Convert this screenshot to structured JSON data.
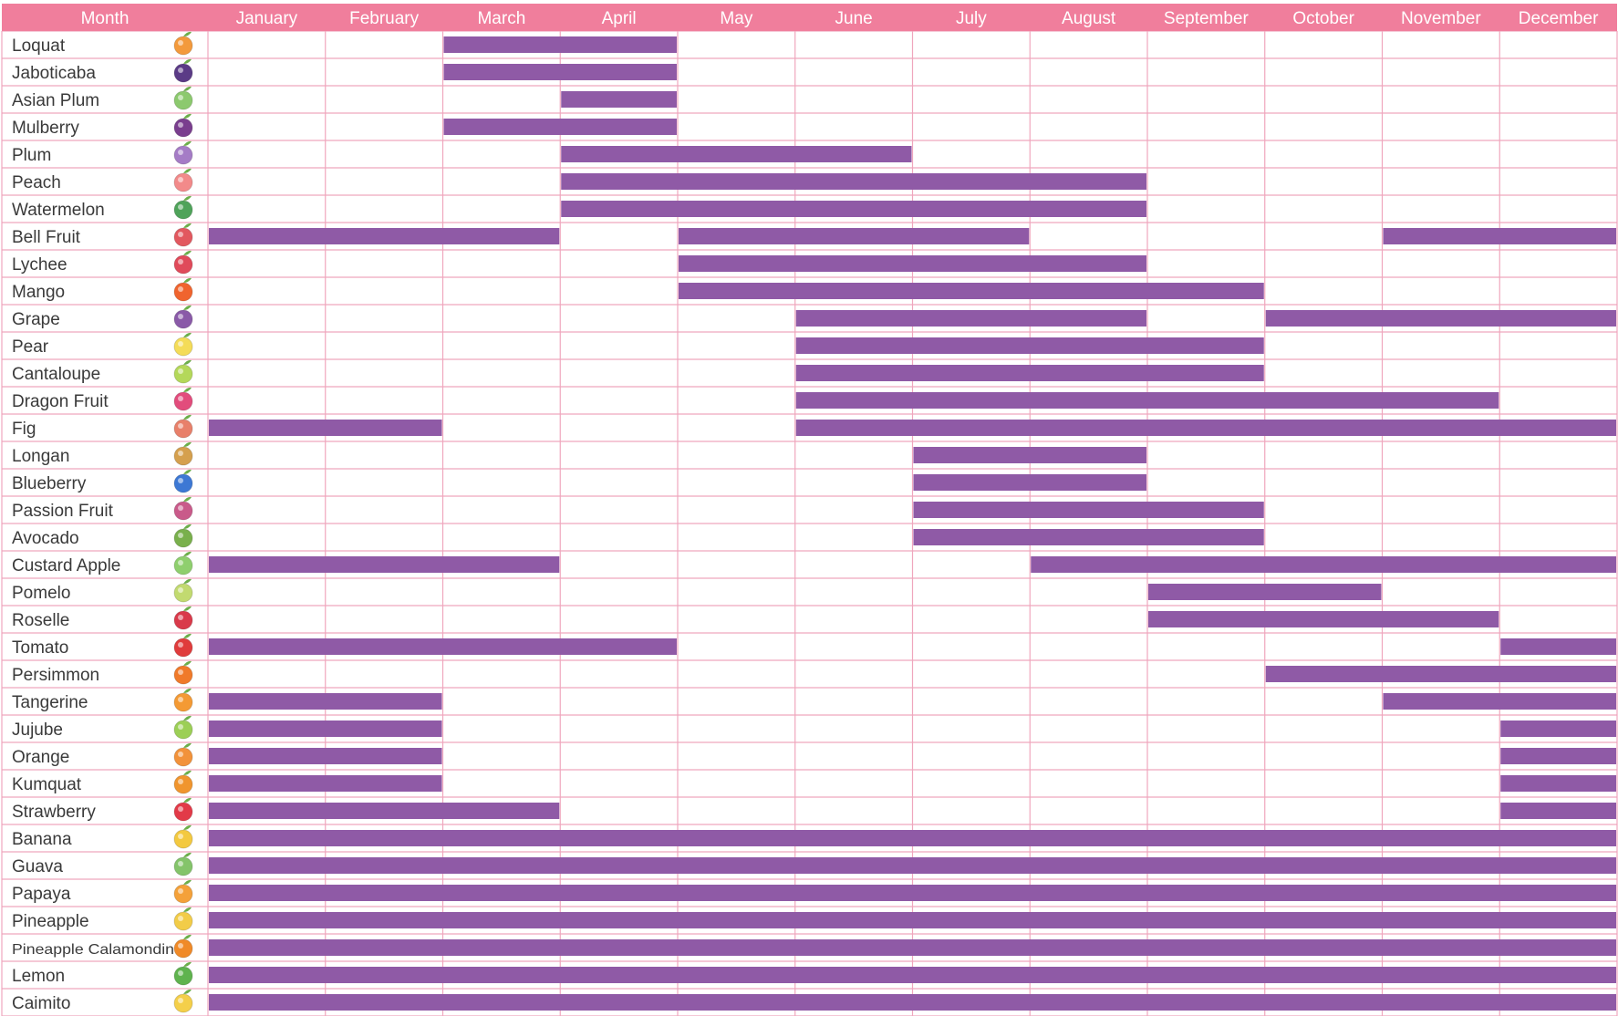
{
  "chart_data": {
    "type": "table",
    "header_label": "Month",
    "months": [
      "January",
      "February",
      "March",
      "April",
      "May",
      "June",
      "July",
      "August",
      "September",
      "October",
      "November",
      "December"
    ],
    "colors": {
      "header": "#f07e9c",
      "grid": "#efa6bd",
      "bar": "#8f5aa6",
      "label": "#3a3a3a"
    },
    "fruits": [
      {
        "name": "Loquat",
        "icon": "loquat-icon",
        "icon_color": "#f39a3c",
        "seasons": [
          [
            3,
            4
          ]
        ]
      },
      {
        "name": "Jaboticaba",
        "icon": "jaboticaba-icon",
        "icon_color": "#5b3b86",
        "seasons": [
          [
            3,
            4
          ]
        ]
      },
      {
        "name": "Asian Plum",
        "icon": "asian-plum-icon",
        "icon_color": "#8cc96e",
        "seasons": [
          [
            4,
            4
          ]
        ]
      },
      {
        "name": "Mulberry",
        "icon": "mulberry-icon",
        "icon_color": "#7a3e8e",
        "seasons": [
          [
            3,
            4
          ]
        ]
      },
      {
        "name": "Plum",
        "icon": "plum-icon",
        "icon_color": "#a57cc6",
        "seasons": [
          [
            4,
            6
          ]
        ]
      },
      {
        "name": "Peach",
        "icon": "peach-icon",
        "icon_color": "#f28a8a",
        "seasons": [
          [
            4,
            8
          ]
        ]
      },
      {
        "name": "Watermelon",
        "icon": "watermelon-icon",
        "icon_color": "#4fa35a",
        "seasons": [
          [
            4,
            8
          ]
        ]
      },
      {
        "name": "Bell Fruit",
        "icon": "bell-fruit-icon",
        "icon_color": "#e2585f",
        "seasons": [
          [
            1,
            3
          ],
          [
            5,
            7
          ],
          [
            11,
            12
          ]
        ]
      },
      {
        "name": "Lychee",
        "icon": "lychee-icon",
        "icon_color": "#e04a5a",
        "seasons": [
          [
            5,
            8
          ]
        ]
      },
      {
        "name": "Mango",
        "icon": "mango-icon",
        "icon_color": "#f0642e",
        "seasons": [
          [
            5,
            9
          ]
        ]
      },
      {
        "name": "Grape",
        "icon": "grape-icon",
        "icon_color": "#8a5aa8",
        "seasons": [
          [
            6,
            8
          ],
          [
            10,
            12
          ]
        ]
      },
      {
        "name": "Pear",
        "icon": "pear-icon",
        "icon_color": "#f4dc58",
        "seasons": [
          [
            6,
            9
          ]
        ]
      },
      {
        "name": "Cantaloupe",
        "icon": "cantaloupe-icon",
        "icon_color": "#b4d85a",
        "seasons": [
          [
            6,
            9
          ]
        ]
      },
      {
        "name": "Dragon Fruit",
        "icon": "dragon-fruit-icon",
        "icon_color": "#e24c7c",
        "seasons": [
          [
            6,
            11
          ]
        ]
      },
      {
        "name": "Fig",
        "icon": "fig-icon",
        "icon_color": "#e8806a",
        "seasons": [
          [
            1,
            2
          ],
          [
            6,
            12
          ]
        ]
      },
      {
        "name": "Longan",
        "icon": "longan-icon",
        "icon_color": "#d5a04e",
        "seasons": [
          [
            7,
            8
          ]
        ]
      },
      {
        "name": "Blueberry",
        "icon": "blueberry-icon",
        "icon_color": "#3d78d4",
        "seasons": [
          [
            7,
            8
          ]
        ]
      },
      {
        "name": "Passion Fruit",
        "icon": "passion-fruit-icon",
        "icon_color": "#c95a8a",
        "seasons": [
          [
            7,
            9
          ]
        ]
      },
      {
        "name": "Avocado",
        "icon": "avocado-icon",
        "icon_color": "#79b04c",
        "seasons": [
          [
            7,
            9
          ]
        ]
      },
      {
        "name": "Custard Apple",
        "icon": "custard-apple-icon",
        "icon_color": "#8fcf6e",
        "seasons": [
          [
            1,
            3
          ],
          [
            8,
            12
          ]
        ]
      },
      {
        "name": "Pomelo",
        "icon": "pomelo-icon",
        "icon_color": "#c2da70",
        "seasons": [
          [
            9,
            10
          ]
        ]
      },
      {
        "name": "Roselle",
        "icon": "roselle-icon",
        "icon_color": "#d93a4a",
        "seasons": [
          [
            9,
            11
          ]
        ]
      },
      {
        "name": "Tomato",
        "icon": "tomato-icon",
        "icon_color": "#e03c3c",
        "seasons": [
          [
            1,
            4
          ],
          [
            12,
            12
          ]
        ]
      },
      {
        "name": "Persimmon",
        "icon": "persimmon-icon",
        "icon_color": "#f07a2a",
        "seasons": [
          [
            10,
            12
          ]
        ]
      },
      {
        "name": "Tangerine",
        "icon": "tangerine-icon",
        "icon_color": "#f49a34",
        "seasons": [
          [
            1,
            2
          ],
          [
            11,
            12
          ]
        ]
      },
      {
        "name": "Jujube",
        "icon": "jujube-icon",
        "icon_color": "#9ccf56",
        "seasons": [
          [
            1,
            2
          ],
          [
            12,
            12
          ]
        ]
      },
      {
        "name": "Orange",
        "icon": "orange-icon",
        "icon_color": "#f2923a",
        "seasons": [
          [
            1,
            2
          ],
          [
            12,
            12
          ]
        ]
      },
      {
        "name": "Kumquat",
        "icon": "kumquat-icon",
        "icon_color": "#f0952e",
        "seasons": [
          [
            1,
            2
          ],
          [
            12,
            12
          ]
        ]
      },
      {
        "name": "Strawberry",
        "icon": "strawberry-icon",
        "icon_color": "#e23a48",
        "seasons": [
          [
            1,
            3
          ],
          [
            12,
            12
          ]
        ]
      },
      {
        "name": "Banana",
        "icon": "banana-icon",
        "icon_color": "#f3c940",
        "seasons": [
          [
            1,
            12
          ]
        ]
      },
      {
        "name": "Guava",
        "icon": "guava-icon",
        "icon_color": "#84c46a",
        "seasons": [
          [
            1,
            12
          ]
        ]
      },
      {
        "name": "Papaya",
        "icon": "papaya-icon",
        "icon_color": "#f4a13a",
        "seasons": [
          [
            1,
            12
          ]
        ]
      },
      {
        "name": "Pineapple",
        "icon": "pineapple-icon",
        "icon_color": "#f2cc48",
        "seasons": [
          [
            1,
            12
          ]
        ]
      },
      {
        "name": "Pineapple Calamondin",
        "icon": "calamondin-icon",
        "icon_color": "#f08a28",
        "seasons": [
          [
            1,
            12
          ]
        ]
      },
      {
        "name": "Lemon",
        "icon": "lemon-icon",
        "icon_color": "#5fb34e",
        "seasons": [
          [
            1,
            12
          ]
        ]
      },
      {
        "name": "Caimito",
        "icon": "caimito-icon",
        "icon_color": "#f4cf4a",
        "seasons": [
          [
            1,
            12
          ]
        ]
      }
    ]
  }
}
